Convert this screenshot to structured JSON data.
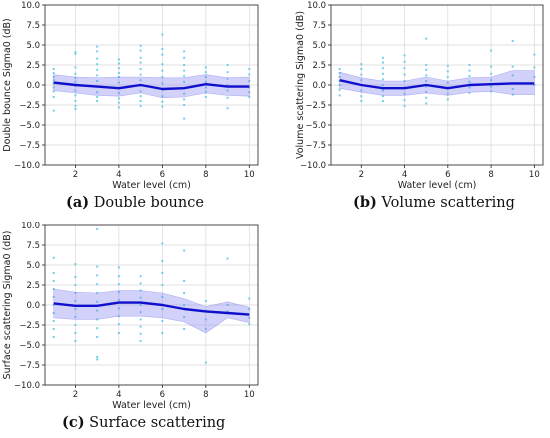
{
  "captions": [
    {
      "letter": "(a)",
      "text": "Double bounce"
    },
    {
      "letter": "(b)",
      "text": "Volume scattering"
    },
    {
      "letter": "(c)",
      "text": "Surface scattering"
    }
  ],
  "colors": {
    "line": "#1010cc",
    "band": "#7b7bf0",
    "points": "#5bc8e6",
    "grid": "#d9d9d9"
  },
  "chart_data": [
    {
      "type": "line",
      "xlabel": "Water level (cm)",
      "ylabel": "Double bounce Sigma0 (dB)",
      "xlim": [
        0.6,
        10.4
      ],
      "ylim": [
        -10,
        10
      ],
      "xticks": [
        2,
        4,
        6,
        8,
        10
      ],
      "yticks": [
        -10,
        -7.5,
        -5,
        -2.5,
        0,
        2.5,
        5,
        7.5,
        10
      ],
      "grid": true,
      "series": [
        {
          "x": [
            1,
            2,
            3,
            4,
            5,
            6,
            7,
            8,
            9,
            10
          ],
          "mean": [
            0.3,
            0.0,
            -0.2,
            -0.4,
            0.0,
            -0.5,
            -0.4,
            0.1,
            -0.2,
            -0.2
          ],
          "band_upper": [
            1.3,
            1.0,
            0.9,
            1.0,
            1.0,
            0.9,
            0.9,
            1.3,
            0.9,
            1.0
          ],
          "band_lower": [
            -0.7,
            -1.0,
            -1.3,
            -1.4,
            -1.0,
            -1.6,
            -1.5,
            -1.0,
            -1.3,
            -1.4
          ]
        }
      ],
      "points": {
        "x": [
          1,
          2,
          3,
          4,
          5,
          6,
          7,
          8,
          9,
          10
        ],
        "y": [
          [
            2.0,
            1.5,
            1.0,
            0.6,
            0.2,
            -0.3,
            -0.8,
            -1.5,
            -3.2
          ],
          [
            4.1,
            3.9,
            2.2,
            1.4,
            0.9,
            0.4,
            -0.1,
            -0.7,
            -1.3,
            -2.0,
            -2.6,
            -3.0
          ],
          [
            4.8,
            4.2,
            3.3,
            2.6,
            1.9,
            1.2,
            0.5,
            -0.2,
            -0.9,
            -1.5,
            -2.0
          ],
          [
            3.2,
            2.7,
            2.1,
            1.5,
            1.0,
            0.3,
            -0.4,
            -1.0,
            -1.7,
            -2.2,
            -2.8
          ],
          [
            4.9,
            4.3,
            3.4,
            2.8,
            2.0,
            1.3,
            0.6,
            -0.1,
            -0.8,
            -1.4,
            -2.0,
            -2.6
          ],
          [
            6.3,
            4.5,
            3.8,
            2.6,
            1.8,
            1.0,
            0.2,
            -0.6,
            -1.4,
            -2.1,
            -2.7
          ],
          [
            4.2,
            3.4,
            2.5,
            1.8,
            1.1,
            0.4,
            -0.4,
            -1.1,
            -1.8,
            -2.5,
            -4.2
          ],
          [
            2.2,
            1.6,
            1.0,
            0.4,
            -0.3,
            -0.9,
            -1.5
          ],
          [
            2.5,
            1.6,
            0.8,
            0.0,
            -0.7,
            -1.6,
            -2.9
          ],
          [
            2.0,
            1.3,
            0.5,
            -0.3,
            -0.9,
            -1.5
          ]
        ]
      }
    },
    {
      "type": "line",
      "xlabel": "Water level (cm)",
      "ylabel": "Volume scattering Sigma0 (dB)",
      "xlim": [
        0.6,
        10.4
      ],
      "ylim": [
        -10,
        10
      ],
      "xticks": [
        2,
        4,
        6,
        8,
        10
      ],
      "yticks": [
        -10,
        -7.5,
        -5,
        -2.5,
        0,
        2.5,
        5,
        7.5,
        10
      ],
      "grid": true,
      "series": [
        {
          "x": [
            1,
            2,
            3,
            4,
            5,
            6,
            7,
            8,
            9,
            10
          ],
          "mean": [
            0.6,
            0.0,
            -0.4,
            -0.4,
            0.0,
            -0.4,
            0.0,
            0.1,
            0.2,
            0.2
          ],
          "band_upper": [
            1.6,
            0.9,
            0.5,
            0.5,
            1.0,
            0.5,
            0.9,
            1.0,
            1.8,
            1.8
          ],
          "band_lower": [
            -0.4,
            -0.9,
            -1.3,
            -1.3,
            -1.0,
            -1.3,
            -0.9,
            -0.8,
            -1.2,
            -1.2
          ]
        }
      ],
      "points": {
        "x": [
          1,
          2,
          3,
          4,
          5,
          6,
          7,
          8,
          9,
          10
        ],
        "y": [
          [
            2.0,
            1.5,
            1.0,
            0.5,
            0.0,
            -0.6,
            -1.3
          ],
          [
            2.6,
            2.0,
            1.3,
            0.6,
            0.0,
            -0.7,
            -1.4,
            -2.0
          ],
          [
            3.4,
            2.8,
            2.1,
            1.4,
            0.7,
            0.0,
            -0.7,
            -1.4,
            -2.0
          ],
          [
            3.7,
            2.9,
            2.1,
            1.3,
            0.5,
            -0.3,
            -1.1,
            -1.9,
            -2.6
          ],
          [
            5.8,
            2.5,
            1.9,
            1.2,
            0.5,
            -0.2,
            -0.9,
            -1.6,
            -2.3
          ],
          [
            2.4,
            1.7,
            1.0,
            0.3,
            -0.4,
            -1.1,
            -1.8
          ],
          [
            2.5,
            1.8,
            1.1,
            0.4,
            -0.3,
            -1.0
          ],
          [
            4.3,
            2.3,
            1.4,
            0.6,
            -0.2,
            -0.8
          ],
          [
            5.5,
            2.3,
            1.2,
            0.2,
            -0.5,
            -1.2
          ],
          [
            3.8,
            2.2,
            1.0,
            0.0
          ]
        ]
      }
    },
    {
      "type": "line",
      "xlabel": "Water level (cm)",
      "ylabel": "Surface scattering Sigma0 (dB)",
      "xlim": [
        0.6,
        10.4
      ],
      "ylim": [
        -10,
        10
      ],
      "xticks": [
        2,
        4,
        6,
        8,
        10
      ],
      "yticks": [
        -10,
        -7.5,
        -5,
        -2.5,
        0,
        2.5,
        5,
        7.5,
        10
      ],
      "grid": true,
      "series": [
        {
          "x": [
            1,
            2,
            3,
            4,
            5,
            6,
            7,
            8,
            9,
            10
          ],
          "mean": [
            0.2,
            -0.1,
            -0.1,
            0.3,
            0.3,
            0.0,
            -0.5,
            -0.8,
            -1.0,
            -1.2
          ],
          "band_upper": [
            2.0,
            1.6,
            1.5,
            1.8,
            1.8,
            1.5,
            0.8,
            -0.2,
            0.4,
            -0.3
          ],
          "band_lower": [
            -1.6,
            -1.8,
            -1.8,
            -1.4,
            -1.4,
            -1.6,
            -2.1,
            -3.5,
            -1.6,
            -2.2
          ]
        }
      ],
      "points": {
        "x": [
          1,
          2,
          3,
          4,
          5,
          6,
          7,
          8,
          9,
          10
        ],
        "y": [
          [
            5.9,
            4.0,
            3.0,
            2.0,
            1.0,
            0.0,
            -1.0,
            -2.0,
            -3.0,
            -4.0
          ],
          [
            5.1,
            3.5,
            2.5,
            1.5,
            0.5,
            -0.5,
            -1.5,
            -2.5,
            -3.5,
            -4.5
          ],
          [
            9.5,
            4.8,
            3.7,
            2.6,
            1.5,
            0.4,
            -0.7,
            -1.8,
            -2.9,
            -4.0,
            -6.5,
            -6.8
          ],
          [
            4.7,
            3.6,
            2.6,
            1.6,
            0.6,
            -0.4,
            -1.4,
            -2.4,
            -3.5
          ],
          [
            3.6,
            2.7,
            1.8,
            0.9,
            0.0,
            -0.9,
            -1.8,
            -2.7,
            -3.6,
            -4.5
          ],
          [
            7.7,
            5.5,
            4.0,
            2.5,
            1.0,
            -0.5,
            -2.0,
            -3.5
          ],
          [
            6.8,
            3.0,
            1.5,
            0.0,
            -1.5,
            -3.0
          ],
          [
            0.5,
            -0.7,
            -1.8,
            -3.0,
            -7.2
          ],
          [
            5.8,
            0.0,
            -0.8
          ],
          [
            0.8,
            -0.5,
            -1.6,
            -2.4
          ]
        ]
      }
    }
  ]
}
